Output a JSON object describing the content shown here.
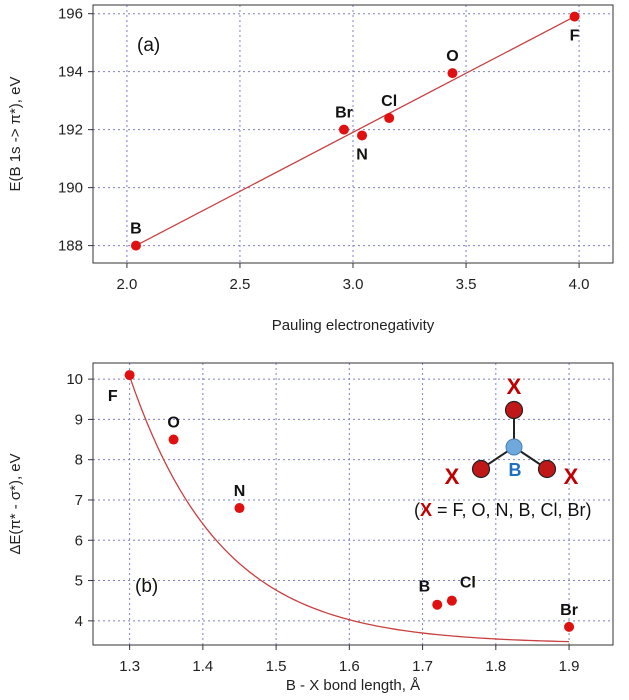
{
  "chart_data": [
    {
      "type": "scatter",
      "panel_label": "(a)",
      "xlabel": "Pauling electronegativity",
      "ylabel": "E(B 1s -> π*), eV",
      "xlim": [
        1.85,
        4.15
      ],
      "ylim": [
        187.4,
        196.3
      ],
      "xticks": [
        2.0,
        2.5,
        3.0,
        3.5,
        4.0
      ],
      "xtick_labels": [
        "2.0",
        "2.5",
        "3.0",
        "3.5",
        "4.0"
      ],
      "yticks": [
        188,
        190,
        192,
        194,
        196
      ],
      "ytick_labels": [
        "188",
        "190",
        "192",
        "194",
        "196"
      ],
      "grid": true,
      "point_color": "#e01010",
      "line_color": "#c84040",
      "fit_line": {
        "x": [
          2.04,
          3.98
        ],
        "y": [
          188.0,
          195.9
        ]
      },
      "points": [
        {
          "label": "B",
          "x": 2.04,
          "y": 188.0,
          "label_pos": "above"
        },
        {
          "label": "Br",
          "x": 2.96,
          "y": 192.0,
          "label_pos": "above"
        },
        {
          "label": "N",
          "x": 3.04,
          "y": 191.8,
          "label_pos": "below"
        },
        {
          "label": "Cl",
          "x": 3.16,
          "y": 192.4,
          "label_pos": "above"
        },
        {
          "label": "O",
          "x": 3.44,
          "y": 193.95,
          "label_pos": "above"
        },
        {
          "label": "F",
          "x": 3.98,
          "y": 195.9,
          "label_pos": "below"
        }
      ]
    },
    {
      "type": "scatter",
      "panel_label": "(b)",
      "xlabel": "B - X bond length, Å",
      "ylabel": "ΔE(π* - σ*), eV",
      "xlim": [
        1.25,
        1.96
      ],
      "ylim": [
        3.4,
        10.4
      ],
      "xticks": [
        1.3,
        1.4,
        1.5,
        1.6,
        1.7,
        1.8,
        1.9
      ],
      "xtick_labels": [
        "1.3",
        "1.4",
        "1.5",
        "1.6",
        "1.7",
        "1.8",
        "1.9"
      ],
      "yticks": [
        4,
        5,
        6,
        7,
        8,
        9,
        10
      ],
      "ytick_labels": [
        "4",
        "5",
        "6",
        "7",
        "8",
        "9",
        "10"
      ],
      "grid": true,
      "point_color": "#e01010",
      "line_color": "#c84040",
      "fit_curve": {
        "x0": 1.3,
        "x1": 1.9,
        "c": 3.43,
        "a": 6.64,
        "k": 8.03
      },
      "points": [
        {
          "label": "F",
          "x": 1.3,
          "y": 10.1,
          "label_pos": "below-left"
        },
        {
          "label": "O",
          "x": 1.36,
          "y": 8.5,
          "label_pos": "above"
        },
        {
          "label": "N",
          "x": 1.45,
          "y": 6.8,
          "label_pos": "above"
        },
        {
          "label": "B",
          "x": 1.72,
          "y": 4.4,
          "label_pos": "above-left"
        },
        {
          "label": "Cl",
          "x": 1.74,
          "y": 4.5,
          "label_pos": "above-right"
        },
        {
          "label": "Br",
          "x": 1.9,
          "y": 3.85,
          "label_pos": "above"
        }
      ],
      "inset": {
        "substituent": "X",
        "center": "B",
        "x_color": "#c00000",
        "b_color": "#1e6fc0",
        "atom_red": "#c01818",
        "atom_blue": "#6fa8dc",
        "legend_open": "(",
        "legend_rest": " = F, O, N, B, Cl, Br)"
      }
    }
  ]
}
